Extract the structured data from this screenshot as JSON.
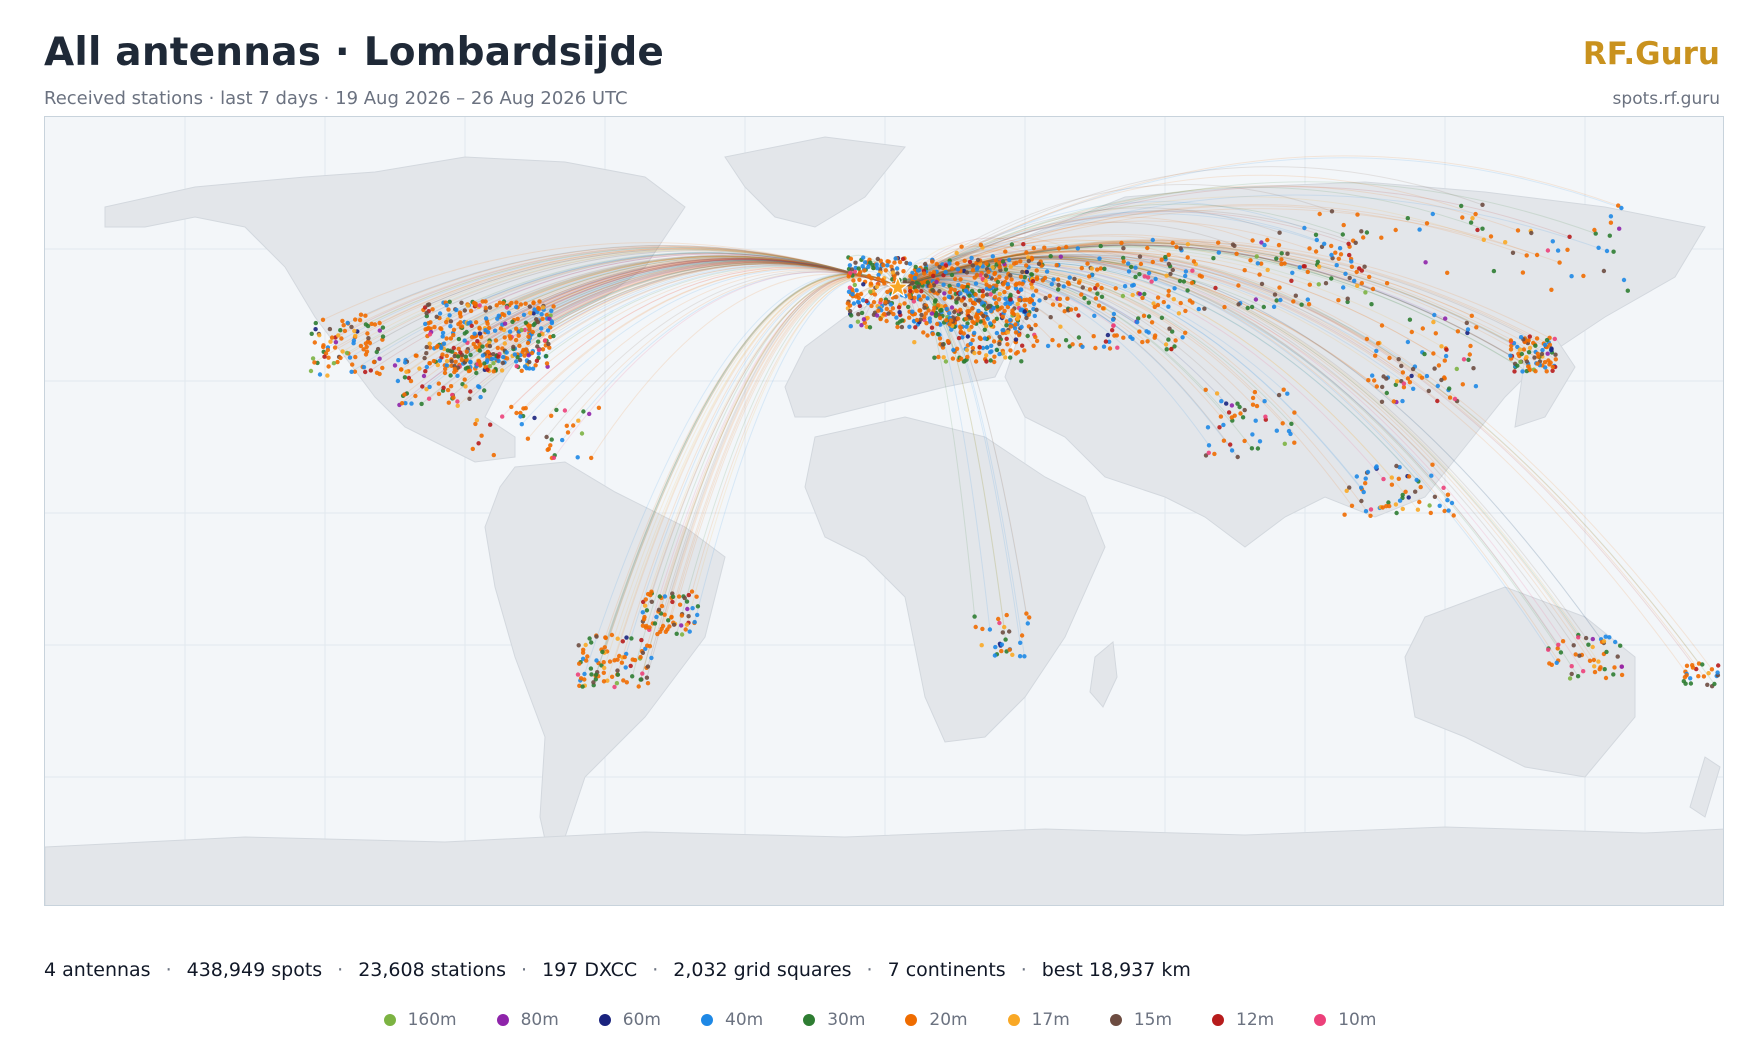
{
  "header": {
    "title": "All antennas · Lombardsijde",
    "subtitle": "Received stations · last 7 days · 19 Aug 2026 – 26 Aug 2026 UTC",
    "brand": "RF.Guru",
    "site": "spots.rf.guru"
  },
  "stats": {
    "antennas": "4 antennas",
    "spots": "438,949 spots",
    "stations": "23,608 stations",
    "dxcc": "197 DXCC",
    "grid_squares": "2,032 grid squares",
    "continents": "7 continents",
    "best": "best 18,937 km",
    "separator": "·"
  },
  "legend": [
    {
      "band": "160m",
      "color": "#7cb342"
    },
    {
      "band": "80m",
      "color": "#8e24aa"
    },
    {
      "band": "60m",
      "color": "#1a237e"
    },
    {
      "band": "40m",
      "color": "#1e88e5"
    },
    {
      "band": "30m",
      "color": "#2e7d32"
    },
    {
      "band": "20m",
      "color": "#ef6c00"
    },
    {
      "band": "17m",
      "color": "#f9a825"
    },
    {
      "band": "15m",
      "color": "#6d4c41"
    },
    {
      "band": "12m",
      "color": "#b71c1c"
    },
    {
      "band": "10m",
      "color": "#ec407a"
    }
  ],
  "map": {
    "projection": "equirectangular",
    "home_station": {
      "name": "Lombardsijde",
      "lat": 51.15,
      "lon": 2.75
    },
    "home_marker_color": "#f9a825",
    "ocean_color": "#f3f6f9",
    "land_color": "#e3e6ea"
  }
}
